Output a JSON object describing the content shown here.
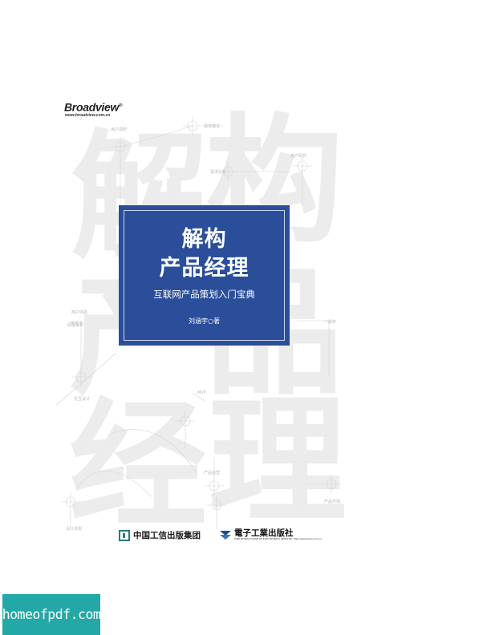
{
  "publisher_logo": {
    "name": "Broadview",
    "mark": "®",
    "url": "www.broadview.com.cn"
  },
  "watermark_chars": [
    "解",
    "构",
    "产",
    "品",
    "经",
    "理"
  ],
  "wireframe_labels": [
    "用户调研",
    "需求模式",
    "需求分析",
    "用户研究",
    "用户体验",
    "需求池",
    "原型设计",
    "交互设计",
    "MVP",
    "一期布",
    "产品运营",
    "设计法则",
    "产品市场"
  ],
  "cover": {
    "title_line1": "解构",
    "title_line2": "产品经理",
    "subtitle": "互联网产品策划入门宝典",
    "author": "刘涵宇○著"
  },
  "bottom_publishers": {
    "left": "中国工信出版集团",
    "right": "電子工業出版社",
    "right_sub": "PUBLISHING HOUSE OF ELECTRONICS INDUSTRY http://www.phei.com.cn"
  },
  "site_banner": "homeofpdf.com",
  "colors": {
    "title_box": "#2b4e9b",
    "banner": "#24a7a7",
    "watermark": "#ececec"
  }
}
